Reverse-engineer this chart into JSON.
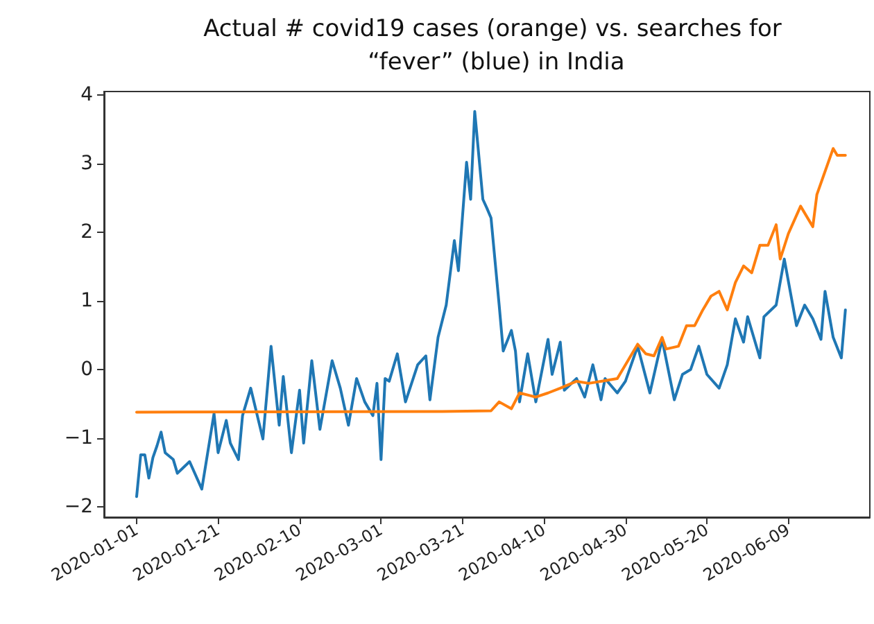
{
  "chart_data": {
    "type": "line",
    "title": "Actual # covid19 cases (orange) vs. searches for “fever” (blue) in India",
    "xlim": [
      "2019-12-24",
      "2020-06-29"
    ],
    "xticks": [
      "2020-01-01",
      "2020-01-21",
      "2020-02-10",
      "2020-03-01",
      "2020-03-21",
      "2020-04-10",
      "2020-04-30",
      "2020-05-20",
      "2020-06-09"
    ],
    "ylim": [
      -2.15,
      4.05
    ],
    "yticks": [
      -2,
      -1,
      0,
      1,
      2,
      3,
      4
    ],
    "grid": false,
    "marker": "none",
    "line_style": "solid",
    "series": [
      {
        "color": "#1f77b4",
        "x": [
          "2020-01-01",
          "2020-01-02",
          "2020-01-03",
          "2020-01-04",
          "2020-01-05",
          "2020-01-06",
          "2020-01-07",
          "2020-01-08",
          "2020-01-10",
          "2020-01-11",
          "2020-01-14",
          "2020-01-17",
          "2020-01-20",
          "2020-01-21",
          "2020-01-23",
          "2020-01-24",
          "2020-01-26",
          "2020-01-27",
          "2020-01-29",
          "2020-02-01",
          "2020-02-03",
          "2020-02-05",
          "2020-02-06",
          "2020-02-08",
          "2020-02-10",
          "2020-02-11",
          "2020-02-13",
          "2020-02-15",
          "2020-02-18",
          "2020-02-20",
          "2020-02-22",
          "2020-02-24",
          "2020-02-26",
          "2020-02-28",
          "2020-02-29",
          "2020-03-01",
          "2020-03-02",
          "2020-03-03",
          "2020-03-05",
          "2020-03-07",
          "2020-03-10",
          "2020-03-12",
          "2020-03-13",
          "2020-03-15",
          "2020-03-17",
          "2020-03-19",
          "2020-03-20",
          "2020-03-22",
          "2020-03-23",
          "2020-03-24",
          "2020-03-26",
          "2020-03-27",
          "2020-03-28",
          "2020-03-30",
          "2020-03-31",
          "2020-04-02",
          "2020-04-03",
          "2020-04-04",
          "2020-04-06",
          "2020-04-08",
          "2020-04-11",
          "2020-04-12",
          "2020-04-14",
          "2020-04-15",
          "2020-04-18",
          "2020-04-20",
          "2020-04-22",
          "2020-04-24",
          "2020-04-25",
          "2020-04-28",
          "2020-04-30",
          "2020-05-03",
          "2020-05-06",
          "2020-05-09",
          "2020-05-12",
          "2020-05-14",
          "2020-05-16",
          "2020-05-18",
          "2020-05-20",
          "2020-05-23",
          "2020-05-25",
          "2020-05-27",
          "2020-05-29",
          "2020-05-30",
          "2020-06-02",
          "2020-06-03",
          "2020-06-06",
          "2020-06-08",
          "2020-06-11",
          "2020-06-13",
          "2020-06-15",
          "2020-06-17",
          "2020-06-18",
          "2020-06-20",
          "2020-06-22",
          "2020-06-23"
        ],
        "values": [
          -1.85,
          -1.24,
          -1.24,
          -1.58,
          -1.28,
          -1.11,
          -0.91,
          -1.21,
          -1.31,
          -1.51,
          -1.34,
          -1.74,
          -0.64,
          -1.21,
          -0.74,
          -1.07,
          -1.31,
          -0.67,
          -0.27,
          -1.01,
          0.34,
          -0.81,
          -0.1,
          -1.21,
          -0.3,
          -1.07,
          0.13,
          -0.87,
          0.13,
          -0.27,
          -0.81,
          -0.13,
          -0.47,
          -0.67,
          -0.2,
          -1.31,
          -0.13,
          -0.17,
          0.23,
          -0.47,
          0.07,
          0.2,
          -0.44,
          0.47,
          0.94,
          1.88,
          1.44,
          3.02,
          2.48,
          3.76,
          2.48,
          2.35,
          2.21,
          0.94,
          0.27,
          0.57,
          0.27,
          -0.47,
          0.23,
          -0.47,
          0.44,
          -0.07,
          0.4,
          -0.3,
          -0.13,
          -0.4,
          0.07,
          -0.44,
          -0.13,
          -0.34,
          -0.17,
          0.34,
          -0.34,
          0.44,
          -0.44,
          -0.07,
          0,
          0.34,
          -0.07,
          -0.27,
          0.07,
          0.74,
          0.4,
          0.77,
          0.17,
          0.77,
          0.94,
          1.61,
          0.64,
          0.94,
          0.74,
          0.44,
          1.14,
          0.47,
          0.17,
          0.87
        ]
      },
      {
        "color": "#ff7f0e",
        "x": [
          "2020-01-01",
          "2020-03-16",
          "2020-03-28",
          "2020-03-30",
          "2020-04-02",
          "2020-04-04",
          "2020-04-08",
          "2020-04-11",
          "2020-04-14",
          "2020-04-18",
          "2020-04-21",
          "2020-04-24",
          "2020-04-28",
          "2020-04-30",
          "2020-05-03",
          "2020-05-05",
          "2020-05-07",
          "2020-05-09",
          "2020-05-10",
          "2020-05-13",
          "2020-05-15",
          "2020-05-17",
          "2020-05-19",
          "2020-05-21",
          "2020-05-23",
          "2020-05-25",
          "2020-05-27",
          "2020-05-29",
          "2020-05-31",
          "2020-06-02",
          "2020-06-04",
          "2020-06-06",
          "2020-06-07",
          "2020-06-09",
          "2020-06-12",
          "2020-06-15",
          "2020-06-16",
          "2020-06-20",
          "2020-06-21",
          "2020-06-23"
        ],
        "values": [
          -0.62,
          -0.61,
          -0.6,
          -0.47,
          -0.57,
          -0.34,
          -0.4,
          -0.34,
          -0.27,
          -0.17,
          -0.2,
          -0.17,
          -0.13,
          0.07,
          0.37,
          0.23,
          0.2,
          0.47,
          0.3,
          0.34,
          0.64,
          0.64,
          0.87,
          1.07,
          1.14,
          0.87,
          1.27,
          1.51,
          1.41,
          1.81,
          1.81,
          2.11,
          1.61,
          1.98,
          2.38,
          2.08,
          2.55,
          3.22,
          3.12,
          3.12
        ]
      }
    ]
  }
}
